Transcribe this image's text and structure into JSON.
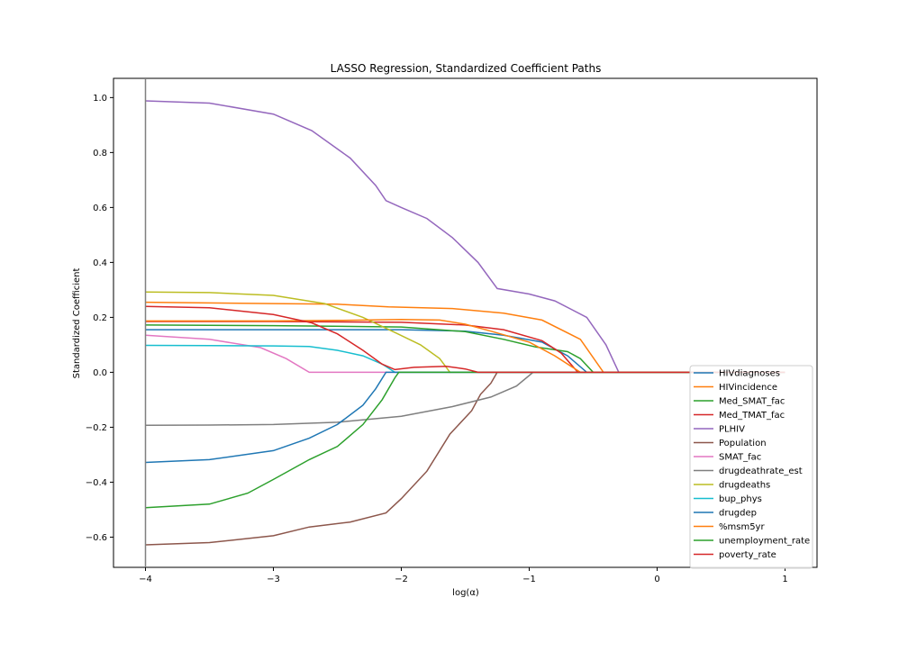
{
  "chart_data": {
    "type": "line",
    "title": "LASSO Regression, Standardized Coefficient Paths",
    "xlabel": "log(α)",
    "ylabel": "Standardized Coefficient",
    "xlim": [
      -4.25,
      1.25
    ],
    "ylim": [
      -0.71,
      1.07
    ],
    "x_ticks": [
      -4,
      -3,
      -2,
      -1,
      0,
      1
    ],
    "x_tick_labels": [
      "−4",
      "−3",
      "−2",
      "−1",
      "0",
      "1"
    ],
    "y_ticks": [
      -0.6,
      -0.4,
      -0.2,
      0.0,
      0.2,
      0.4,
      0.6,
      0.8,
      1.0
    ],
    "y_tick_labels": [
      "−0.6",
      "−0.4",
      "−0.2",
      "0.0",
      "0.2",
      "0.4",
      "0.6",
      "0.8",
      "1.0"
    ],
    "vertical_line": {
      "x": -4,
      "color": "#808080"
    },
    "grid": false,
    "legend_position": "lower-right",
    "series": [
      {
        "name": "HIVdiagnoses",
        "color": "#1f77b4",
        "points": [
          [
            -4,
            0.155
          ],
          [
            -3,
            0.155
          ],
          [
            -2,
            0.155
          ],
          [
            -1.5,
            0.15
          ],
          [
            -1.2,
            0.135
          ],
          [
            -0.9,
            0.11
          ],
          [
            -0.7,
            0.06
          ],
          [
            -0.55,
            0.0
          ],
          [
            1,
            0.0
          ]
        ]
      },
      {
        "name": "HIVincidence",
        "color": "#ff7f0e",
        "points": [
          [
            -4,
            0.255
          ],
          [
            -3,
            0.25
          ],
          [
            -2.5,
            0.248
          ],
          [
            -2.1,
            0.238
          ],
          [
            -1.6,
            0.232
          ],
          [
            -1.2,
            0.215
          ],
          [
            -0.9,
            0.19
          ],
          [
            -0.6,
            0.12
          ],
          [
            -0.42,
            0.0
          ],
          [
            1,
            0.0
          ]
        ]
      },
      {
        "name": "Med_SMAT_fac",
        "color": "#2ca02c",
        "points": [
          [
            -4,
            0.172
          ],
          [
            -3,
            0.17
          ],
          [
            -2,
            0.165
          ],
          [
            -1.5,
            0.148
          ],
          [
            -1.2,
            0.12
          ],
          [
            -0.95,
            0.092
          ],
          [
            -0.7,
            0.075
          ],
          [
            -0.6,
            0.05
          ],
          [
            -0.5,
            0.0
          ],
          [
            1,
            0.0
          ]
        ]
      },
      {
        "name": "Med_TMAT_fac",
        "color": "#d62728",
        "points": [
          [
            -4,
            0.185
          ],
          [
            -3,
            0.185
          ],
          [
            -2,
            0.182
          ],
          [
            -1.5,
            0.172
          ],
          [
            -1.2,
            0.155
          ],
          [
            -0.9,
            0.115
          ],
          [
            -0.75,
            0.07
          ],
          [
            -0.62,
            0.0
          ],
          [
            1,
            0.0
          ]
        ]
      },
      {
        "name": "PLHIV",
        "color": "#9467bd",
        "points": [
          [
            -4,
            0.988
          ],
          [
            -3.5,
            0.98
          ],
          [
            -3,
            0.94
          ],
          [
            -2.7,
            0.88
          ],
          [
            -2.4,
            0.78
          ],
          [
            -2.2,
            0.68
          ],
          [
            -2.12,
            0.625
          ],
          [
            -2,
            0.6
          ],
          [
            -1.8,
            0.56
          ],
          [
            -1.6,
            0.49
          ],
          [
            -1.4,
            0.4
          ],
          [
            -1.25,
            0.305
          ],
          [
            -1.0,
            0.285
          ],
          [
            -0.8,
            0.26
          ],
          [
            -0.55,
            0.2
          ],
          [
            -0.4,
            0.1
          ],
          [
            -0.3,
            0.0
          ],
          [
            1,
            0.0
          ]
        ]
      },
      {
        "name": "Population",
        "color": "#8c564b",
        "points": [
          [
            -4,
            -0.628
          ],
          [
            -3.5,
            -0.62
          ],
          [
            -3,
            -0.595
          ],
          [
            -2.72,
            -0.563
          ],
          [
            -2.4,
            -0.545
          ],
          [
            -2.12,
            -0.512
          ],
          [
            -2,
            -0.46
          ],
          [
            -1.8,
            -0.36
          ],
          [
            -1.62,
            -0.225
          ],
          [
            -1.45,
            -0.14
          ],
          [
            -1.38,
            -0.08
          ],
          [
            -1.3,
            -0.04
          ],
          [
            -1.25,
            0.0
          ],
          [
            1,
            0.0
          ]
        ]
      },
      {
        "name": "SMAT_fac",
        "color": "#e377c2",
        "points": [
          [
            -4,
            0.135
          ],
          [
            -3.5,
            0.12
          ],
          [
            -3.1,
            0.09
          ],
          [
            -2.9,
            0.05
          ],
          [
            -2.72,
            0.0
          ],
          [
            1,
            0.0
          ]
        ]
      },
      {
        "name": "drugdeathrate_est",
        "color": "#7f7f7f",
        "points": [
          [
            -4,
            -0.193
          ],
          [
            -3.5,
            -0.192
          ],
          [
            -3,
            -0.19
          ],
          [
            -2.5,
            -0.182
          ],
          [
            -2,
            -0.16
          ],
          [
            -1.6,
            -0.125
          ],
          [
            -1.3,
            -0.09
          ],
          [
            -1.1,
            -0.05
          ],
          [
            -0.97,
            0.0
          ],
          [
            1,
            0.0
          ]
        ]
      },
      {
        "name": "drugdeaths",
        "color": "#bcbd22",
        "points": [
          [
            -4,
            0.292
          ],
          [
            -3.5,
            0.29
          ],
          [
            -3,
            0.28
          ],
          [
            -2.6,
            0.25
          ],
          [
            -2.3,
            0.2
          ],
          [
            -2.05,
            0.145
          ],
          [
            -1.85,
            0.1
          ],
          [
            -1.7,
            0.05
          ],
          [
            -1.62,
            0.0
          ],
          [
            1,
            0.0
          ]
        ]
      },
      {
        "name": "bup_phys",
        "color": "#17becf",
        "points": [
          [
            -4,
            0.098
          ],
          [
            -3.5,
            0.097
          ],
          [
            -3,
            0.096
          ],
          [
            -2.72,
            0.094
          ],
          [
            -2.5,
            0.08
          ],
          [
            -2.3,
            0.06
          ],
          [
            -2.15,
            0.03
          ],
          [
            -2.05,
            0.0
          ],
          [
            1,
            0.0
          ]
        ]
      },
      {
        "name": "drugdep",
        "color": "#1f77b4",
        "points": [
          [
            -4,
            -0.328
          ],
          [
            -3.5,
            -0.318
          ],
          [
            -3,
            -0.285
          ],
          [
            -2.72,
            -0.24
          ],
          [
            -2.5,
            -0.19
          ],
          [
            -2.3,
            -0.12
          ],
          [
            -2.2,
            -0.06
          ],
          [
            -2.12,
            0.0
          ],
          [
            1,
            0.0
          ]
        ]
      },
      {
        "name": "%msm5yr",
        "color": "#ff7f0e",
        "points": [
          [
            -4,
            0.187
          ],
          [
            -3,
            0.187
          ],
          [
            -2.5,
            0.189
          ],
          [
            -2,
            0.192
          ],
          [
            -1.7,
            0.19
          ],
          [
            -1.5,
            0.175
          ],
          [
            -1.3,
            0.15
          ],
          [
            -1.0,
            0.11
          ],
          [
            -0.8,
            0.06
          ],
          [
            -0.6,
            0.0
          ],
          [
            1,
            0.0
          ]
        ]
      },
      {
        "name": "unemployment_rate",
        "color": "#2ca02c",
        "points": [
          [
            -4,
            -0.493
          ],
          [
            -3.5,
            -0.48
          ],
          [
            -3.2,
            -0.44
          ],
          [
            -3,
            -0.39
          ],
          [
            -2.72,
            -0.318
          ],
          [
            -2.5,
            -0.27
          ],
          [
            -2.3,
            -0.19
          ],
          [
            -2.15,
            -0.1
          ],
          [
            -2.05,
            -0.02
          ],
          [
            -2.02,
            0.0
          ],
          [
            1,
            0.0
          ]
        ]
      },
      {
        "name": "poverty_rate",
        "color": "#d62728",
        "points": [
          [
            -4,
            0.24
          ],
          [
            -3.5,
            0.235
          ],
          [
            -3,
            0.21
          ],
          [
            -2.7,
            0.18
          ],
          [
            -2.5,
            0.14
          ],
          [
            -2.3,
            0.08
          ],
          [
            -2.15,
            0.03
          ],
          [
            -2.05,
            0.01
          ],
          [
            -1.9,
            0.018
          ],
          [
            -1.65,
            0.022
          ],
          [
            -1.5,
            0.012
          ],
          [
            -1.4,
            0.0
          ],
          [
            1,
            0.0
          ]
        ]
      }
    ]
  }
}
